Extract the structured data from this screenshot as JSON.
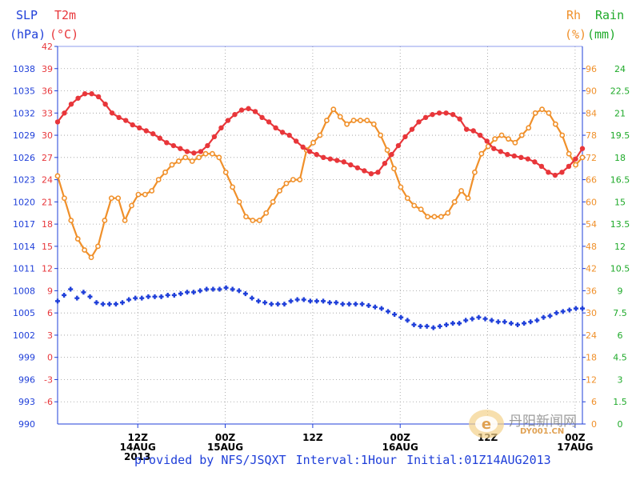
{
  "header": {
    "slp_label": "SLP",
    "slp_unit": "(hPa)",
    "t2m_label": "T2m",
    "t2m_unit": "(°C)",
    "rh_label": "Rh",
    "rh_unit": "(%)",
    "rain_label": "Rain",
    "rain_unit": "(mm)"
  },
  "footer": {
    "provided_by": "provided by NFS/JSQXT",
    "interval": "Interval:1Hour",
    "initial": "Initial:01Z14AUG2013"
  },
  "year_label": "2013",
  "watermark": {
    "text": "丹阳新闻网",
    "sub": "DY001.CN"
  },
  "colors": {
    "slp": "#1f3fd9",
    "t2m": "#e8363a",
    "rh": "#f0902a",
    "rain": "#1faa2a",
    "grid": "#9a9a9a",
    "axis": "#1f3fd9"
  },
  "chart_data": {
    "type": "line",
    "x_unit": "hour since 01Z14AUG2013",
    "x_range": [
      0,
      72
    ],
    "x_ticks": [
      {
        "hour": 11,
        "label": "12Z",
        "date": "14AUG"
      },
      {
        "hour": 23,
        "label": "00Z",
        "date": "15AUG"
      },
      {
        "hour": 35,
        "label": "12Z",
        "date": ""
      },
      {
        "hour": 47,
        "label": "00Z",
        "date": "16AUG"
      },
      {
        "hour": 59,
        "label": "12Z",
        "date": ""
      },
      {
        "hour": 71,
        "label": "00Z",
        "date": "17AUG"
      }
    ],
    "axes": {
      "slp": {
        "range": [
          990,
          1041
        ],
        "ticks": [
          990,
          993,
          996,
          999,
          1002,
          1005,
          1008,
          1011,
          1014,
          1017,
          1020,
          1023,
          1026,
          1029,
          1032,
          1035,
          1038
        ]
      },
      "t2m": {
        "range": [
          -9,
          42
        ],
        "ticks": [
          -6,
          -3,
          0,
          3,
          6,
          9,
          12,
          15,
          18,
          21,
          24,
          27,
          30,
          33,
          36,
          39,
          42
        ]
      },
      "rh": {
        "range": [
          0,
          102
        ],
        "ticks": [
          0,
          6,
          12,
          18,
          24,
          30,
          36,
          42,
          48,
          54,
          60,
          66,
          72,
          78,
          84,
          90,
          96
        ]
      },
      "rain": {
        "range": [
          0,
          25.5
        ],
        "ticks": [
          "0",
          "1.5",
          "3",
          "4.5",
          "6",
          "7.5",
          "9",
          "10.5",
          "12",
          "13.5",
          "15",
          "16.5",
          "18",
          "19.5",
          "21",
          "22.5",
          "24"
        ]
      }
    },
    "series": [
      {
        "name": "SLP",
        "axis": "slp",
        "values": [
          1006.6,
          1007.4,
          1008.2,
          1007.0,
          1007.8,
          1007.2,
          1006.4,
          1006.2,
          1006.2,
          1006.2,
          1006.4,
          1006.8,
          1007.0,
          1007.0,
          1007.2,
          1007.2,
          1007.2,
          1007.4,
          1007.4,
          1007.6,
          1007.8,
          1007.8,
          1008.0,
          1008.2,
          1008.2,
          1008.2,
          1008.4,
          1008.2,
          1008.0,
          1007.6,
          1007.0,
          1006.6,
          1006.4,
          1006.2,
          1006.2,
          1006.2,
          1006.6,
          1006.8,
          1006.8,
          1006.6,
          1006.6,
          1006.6,
          1006.4,
          1006.4,
          1006.2,
          1006.2,
          1006.2,
          1006.2,
          1006.0,
          1005.8,
          1005.6,
          1005.2,
          1004.8,
          1004.4,
          1004.0,
          1003.4,
          1003.2,
          1003.2,
          1003.0,
          1003.2,
          1003.4,
          1003.6,
          1003.6,
          1004.0,
          1004.2,
          1004.4,
          1004.2,
          1004.0,
          1003.8,
          1003.8,
          1003.6,
          1003.4,
          1003.6,
          1003.8,
          1004.0,
          1004.4,
          1004.6,
          1005.0,
          1005.2,
          1005.4,
          1005.6,
          1005.6
        ]
      },
      {
        "name": "T2m",
        "axis": "t2m",
        "values": [
          31.8,
          33.0,
          34.2,
          35.0,
          35.6,
          35.6,
          35.2,
          34.2,
          33.0,
          32.4,
          32.0,
          31.4,
          31.0,
          30.6,
          30.2,
          29.6,
          29.0,
          28.6,
          28.2,
          27.8,
          27.6,
          27.8,
          28.6,
          29.8,
          31.0,
          32.0,
          32.8,
          33.4,
          33.6,
          33.2,
          32.4,
          31.8,
          31.0,
          30.4,
          30.0,
          29.2,
          28.4,
          27.8,
          27.4,
          27.0,
          26.8,
          26.6,
          26.4,
          26.0,
          25.6,
          25.2,
          24.8,
          25.0,
          26.2,
          27.4,
          28.6,
          29.8,
          30.8,
          31.8,
          32.4,
          32.8,
          33.0,
          33.0,
          32.8,
          32.2,
          30.8,
          30.6,
          30.0,
          29.2,
          28.2,
          27.8,
          27.4,
          27.2,
          27.0,
          26.8,
          26.4,
          25.8,
          25.0,
          24.6,
          25.0,
          25.8,
          26.8,
          28.2
        ]
      },
      {
        "name": "Rh",
        "axis": "rh",
        "values": [
          67,
          61,
          55,
          50,
          47,
          45,
          48,
          55,
          61,
          61,
          55,
          59,
          62,
          62,
          63,
          66,
          68,
          70,
          71,
          72,
          71,
          72,
          73,
          73,
          72,
          68,
          64,
          60,
          56,
          55,
          55,
          57,
          60,
          63,
          65,
          66,
          66,
          74,
          76,
          78,
          82,
          85,
          83,
          81,
          82,
          82,
          82,
          81,
          78,
          74,
          69,
          64,
          61,
          59,
          58,
          56,
          56,
          56,
          57,
          60,
          63,
          61,
          68,
          73,
          75,
          77,
          78,
          77,
          76,
          78,
          80,
          84,
          85,
          84,
          81,
          78,
          73,
          70,
          72
        ]
      }
    ],
    "ylabel_left": "SLP (hPa)",
    "ylabel_left2": "T2m (°C)",
    "ylabel_right": "Rh (%)",
    "ylabel_right2": "Rain (mm)"
  }
}
